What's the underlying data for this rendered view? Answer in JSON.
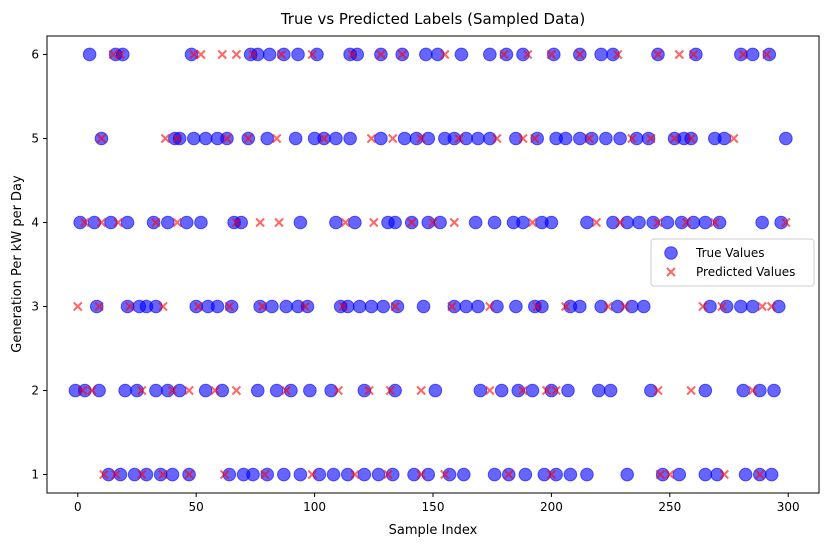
{
  "chart_data": {
    "type": "scatter",
    "title": "True vs Predicted Labels (Sampled Data)",
    "xlabel": "Sample Index",
    "ylabel": "Generation Per kW per Day",
    "xlim": [
      -13,
      313
    ],
    "ylim": [
      0.78,
      6.22
    ],
    "xticks": [
      0,
      50,
      100,
      150,
      200,
      250,
      300
    ],
    "yticks": [
      1,
      2,
      3,
      4,
      5,
      6
    ],
    "grid": false,
    "legend_position": "center-right",
    "series": [
      {
        "name": "True Values",
        "marker": "circle",
        "color": "#0000ff",
        "points": [
          [
            5,
            6
          ],
          [
            16,
            6
          ],
          [
            19,
            6
          ],
          [
            48,
            6
          ],
          [
            73,
            6
          ],
          [
            76,
            6
          ],
          [
            81,
            6
          ],
          [
            87,
            6
          ],
          [
            93,
            6
          ],
          [
            101,
            6
          ],
          [
            115,
            6
          ],
          [
            118,
            6
          ],
          [
            128,
            6
          ],
          [
            137,
            6
          ],
          [
            147,
            6
          ],
          [
            152,
            6
          ],
          [
            162,
            6
          ],
          [
            174,
            6
          ],
          [
            181,
            6
          ],
          [
            188,
            6
          ],
          [
            201,
            6
          ],
          [
            212,
            6
          ],
          [
            221,
            6
          ],
          [
            226,
            6
          ],
          [
            245,
            6
          ],
          [
            261,
            6
          ],
          [
            280,
            6
          ],
          [
            285,
            6
          ],
          [
            292,
            6
          ],
          [
            10,
            5
          ],
          [
            41,
            5
          ],
          [
            43,
            5
          ],
          [
            49,
            5
          ],
          [
            54,
            5
          ],
          [
            59,
            5
          ],
          [
            63,
            5
          ],
          [
            72,
            5
          ],
          [
            80,
            5
          ],
          [
            92,
            5
          ],
          [
            100,
            5
          ],
          [
            104,
            5
          ],
          [
            109,
            5
          ],
          [
            115,
            5
          ],
          [
            128,
            5
          ],
          [
            138,
            5
          ],
          [
            143,
            5
          ],
          [
            148,
            5
          ],
          [
            155,
            5
          ],
          [
            159,
            5
          ],
          [
            164,
            5
          ],
          [
            169,
            5
          ],
          [
            174,
            5
          ],
          [
            185,
            5
          ],
          [
            194,
            5
          ],
          [
            202,
            5
          ],
          [
            206,
            5
          ],
          [
            212,
            5
          ],
          [
            217,
            5
          ],
          [
            223,
            5
          ],
          [
            229,
            5
          ],
          [
            236,
            5
          ],
          [
            241,
            5
          ],
          [
            252,
            5
          ],
          [
            256,
            5
          ],
          [
            259,
            5
          ],
          [
            269,
            5
          ],
          [
            273,
            5
          ],
          [
            299,
            5
          ],
          [
            1,
            4
          ],
          [
            7,
            4
          ],
          [
            14,
            4
          ],
          [
            21,
            4
          ],
          [
            32,
            4
          ],
          [
            38,
            4
          ],
          [
            46,
            4
          ],
          [
            52,
            4
          ],
          [
            66,
            4
          ],
          [
            69,
            4
          ],
          [
            94,
            4
          ],
          [
            109,
            4
          ],
          [
            117,
            4
          ],
          [
            131,
            4
          ],
          [
            134,
            4
          ],
          [
            141,
            4
          ],
          [
            148,
            4
          ],
          [
            153,
            4
          ],
          [
            168,
            4
          ],
          [
            176,
            4
          ],
          [
            184,
            4
          ],
          [
            188,
            4
          ],
          [
            196,
            4
          ],
          [
            200,
            4
          ],
          [
            215,
            4
          ],
          [
            226,
            4
          ],
          [
            232,
            4
          ],
          [
            237,
            4
          ],
          [
            243,
            4
          ],
          [
            249,
            4
          ],
          [
            255,
            4
          ],
          [
            260,
            4
          ],
          [
            265,
            4
          ],
          [
            271,
            4
          ],
          [
            289,
            4
          ],
          [
            297,
            4
          ],
          [
            8,
            3
          ],
          [
            21,
            3
          ],
          [
            26,
            3
          ],
          [
            29,
            3
          ],
          [
            33,
            3
          ],
          [
            50,
            3
          ],
          [
            55,
            3
          ],
          [
            59,
            3
          ],
          [
            65,
            3
          ],
          [
            77,
            3
          ],
          [
            82,
            3
          ],
          [
            88,
            3
          ],
          [
            93,
            3
          ],
          [
            97,
            3
          ],
          [
            111,
            3
          ],
          [
            114,
            3
          ],
          [
            119,
            3
          ],
          [
            124,
            3
          ],
          [
            129,
            3
          ],
          [
            135,
            3
          ],
          [
            146,
            3
          ],
          [
            159,
            3
          ],
          [
            164,
            3
          ],
          [
            169,
            3
          ],
          [
            177,
            3
          ],
          [
            185,
            3
          ],
          [
            193,
            3
          ],
          [
            196,
            3
          ],
          [
            208,
            3
          ],
          [
            212,
            3
          ],
          [
            221,
            3
          ],
          [
            228,
            3
          ],
          [
            234,
            3
          ],
          [
            239,
            3
          ],
          [
            267,
            3
          ],
          [
            274,
            3
          ],
          [
            280,
            3
          ],
          [
            285,
            3
          ],
          [
            296,
            3
          ],
          [
            -1,
            2
          ],
          [
            3,
            2
          ],
          [
            9,
            2
          ],
          [
            20,
            2
          ],
          [
            25,
            2
          ],
          [
            33,
            2
          ],
          [
            38,
            2
          ],
          [
            43,
            2
          ],
          [
            54,
            2
          ],
          [
            61,
            2
          ],
          [
            76,
            2
          ],
          [
            84,
            2
          ],
          [
            90,
            2
          ],
          [
            98,
            2
          ],
          [
            107,
            2
          ],
          [
            121,
            2
          ],
          [
            134,
            2
          ],
          [
            151,
            2
          ],
          [
            170,
            2
          ],
          [
            179,
            2
          ],
          [
            186,
            2
          ],
          [
            192,
            2
          ],
          [
            200,
            2
          ],
          [
            207,
            2
          ],
          [
            220,
            2
          ],
          [
            225,
            2
          ],
          [
            242,
            2
          ],
          [
            265,
            2
          ],
          [
            281,
            2
          ],
          [
            288,
            2
          ],
          [
            294,
            2
          ],
          [
            13,
            1
          ],
          [
            18,
            1
          ],
          [
            24,
            1
          ],
          [
            29,
            1
          ],
          [
            35,
            1
          ],
          [
            40,
            1
          ],
          [
            47,
            1
          ],
          [
            64,
            1
          ],
          [
            70,
            1
          ],
          [
            74,
            1
          ],
          [
            80,
            1
          ],
          [
            87,
            1
          ],
          [
            94,
            1
          ],
          [
            102,
            1
          ],
          [
            108,
            1
          ],
          [
            114,
            1
          ],
          [
            121,
            1
          ],
          [
            127,
            1
          ],
          [
            133,
            1
          ],
          [
            142,
            1
          ],
          [
            148,
            1
          ],
          [
            157,
            1
          ],
          [
            163,
            1
          ],
          [
            176,
            1
          ],
          [
            182,
            1
          ],
          [
            189,
            1
          ],
          [
            197,
            1
          ],
          [
            202,
            1
          ],
          [
            208,
            1
          ],
          [
            215,
            1
          ],
          [
            232,
            1
          ],
          [
            247,
            1
          ],
          [
            254,
            1
          ],
          [
            265,
            1
          ],
          [
            270,
            1
          ],
          [
            282,
            1
          ],
          [
            288,
            1
          ],
          [
            293,
            1
          ]
        ]
      },
      {
        "name": "Predicted Values",
        "marker": "x",
        "color": "#ff0000",
        "points": [
          [
            15,
            6
          ],
          [
            18,
            6
          ],
          [
            49,
            6
          ],
          [
            52,
            6
          ],
          [
            61,
            6
          ],
          [
            67,
            6
          ],
          [
            74,
            6
          ],
          [
            86,
            6
          ],
          [
            99,
            6
          ],
          [
            116,
            6
          ],
          [
            128,
            6
          ],
          [
            137,
            6
          ],
          [
            155,
            6
          ],
          [
            180,
            6
          ],
          [
            190,
            6
          ],
          [
            200,
            6
          ],
          [
            212,
            6
          ],
          [
            228,
            6
          ],
          [
            245,
            6
          ],
          [
            254,
            6
          ],
          [
            260,
            6
          ],
          [
            281,
            6
          ],
          [
            291,
            6
          ],
          [
            10,
            5
          ],
          [
            37,
            5
          ],
          [
            42,
            5
          ],
          [
            63,
            5
          ],
          [
            72,
            5
          ],
          [
            84,
            5
          ],
          [
            104,
            5
          ],
          [
            124,
            5
          ],
          [
            133,
            5
          ],
          [
            145,
            5
          ],
          [
            161,
            5
          ],
          [
            177,
            5
          ],
          [
            188,
            5
          ],
          [
            193,
            5
          ],
          [
            216,
            5
          ],
          [
            234,
            5
          ],
          [
            242,
            5
          ],
          [
            252,
            5
          ],
          [
            259,
            5
          ],
          [
            277,
            5
          ],
          [
            3,
            4
          ],
          [
            10,
            4
          ],
          [
            17,
            4
          ],
          [
            33,
            4
          ],
          [
            42,
            4
          ],
          [
            67,
            4
          ],
          [
            77,
            4
          ],
          [
            85,
            4
          ],
          [
            113,
            4
          ],
          [
            125,
            4
          ],
          [
            141,
            4
          ],
          [
            150,
            4
          ],
          [
            159,
            4
          ],
          [
            192,
            4
          ],
          [
            219,
            4
          ],
          [
            229,
            4
          ],
          [
            245,
            4
          ],
          [
            257,
            4
          ],
          [
            269,
            4
          ],
          [
            299,
            4
          ],
          [
            0,
            3
          ],
          [
            9,
            3
          ],
          [
            22,
            3
          ],
          [
            36,
            3
          ],
          [
            51,
            3
          ],
          [
            64,
            3
          ],
          [
            78,
            3
          ],
          [
            96,
            3
          ],
          [
            112,
            3
          ],
          [
            134,
            3
          ],
          [
            158,
            3
          ],
          [
            174,
            3
          ],
          [
            194,
            3
          ],
          [
            206,
            3
          ],
          [
            224,
            3
          ],
          [
            231,
            3
          ],
          [
            264,
            3
          ],
          [
            272,
            3
          ],
          [
            289,
            3
          ],
          [
            293,
            3
          ],
          [
            2,
            2
          ],
          [
            6,
            2
          ],
          [
            27,
            2
          ],
          [
            40,
            2
          ],
          [
            47,
            2
          ],
          [
            58,
            2
          ],
          [
            67,
            2
          ],
          [
            88,
            2
          ],
          [
            110,
            2
          ],
          [
            123,
            2
          ],
          [
            132,
            2
          ],
          [
            145,
            2
          ],
          [
            174,
            2
          ],
          [
            188,
            2
          ],
          [
            198,
            2
          ],
          [
            202,
            2
          ],
          [
            245,
            2
          ],
          [
            259,
            2
          ],
          [
            285,
            2
          ],
          [
            11,
            1
          ],
          [
            16,
            1
          ],
          [
            27,
            1
          ],
          [
            36,
            1
          ],
          [
            47,
            1
          ],
          [
            62,
            1
          ],
          [
            79,
            1
          ],
          [
            99,
            1
          ],
          [
            117,
            1
          ],
          [
            131,
            1
          ],
          [
            145,
            1
          ],
          [
            155,
            1
          ],
          [
            182,
            1
          ],
          [
            200,
            1
          ],
          [
            246,
            1
          ],
          [
            250,
            1
          ],
          [
            273,
            1
          ],
          [
            288,
            1
          ]
        ]
      }
    ]
  }
}
